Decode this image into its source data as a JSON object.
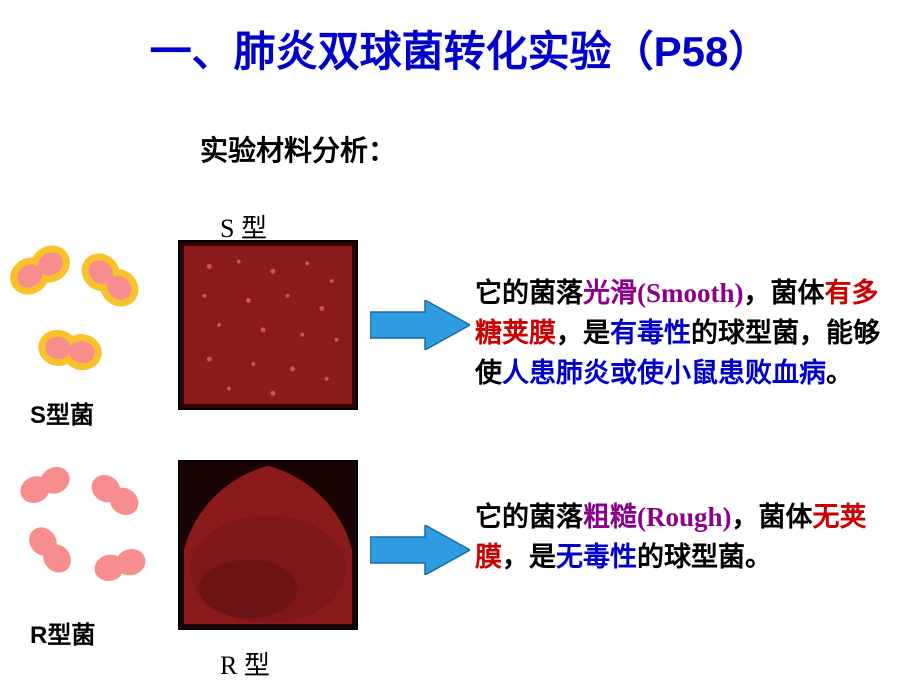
{
  "title": {
    "text": "一、肺炎双球菌转化实验（P58）",
    "color": "#0000cc"
  },
  "subtitle": "实验材料分析：",
  "labels": {
    "s_top": "S 型",
    "r_bottom": "R 型",
    "s_cn": "S型菌",
    "r_cn": "R型菌"
  },
  "bacteria": {
    "s_fill": "#f88d8d",
    "s_border": "#f9c22b",
    "r_fill": "#f88d8d"
  },
  "petri": {
    "bg": "#8b1a1a",
    "dark": "#6b1515"
  },
  "arrow_color": "#2d9de0",
  "arrow_border": "#1a6aa0",
  "text_s": {
    "parts": [
      {
        "t": "它的菌落",
        "c": "#000000"
      },
      {
        "t": "光滑(Smooth)",
        "c": "#8b008b"
      },
      {
        "t": "，菌体",
        "c": "#000000"
      },
      {
        "t": "有多糖荚膜",
        "c": "#cc0000"
      },
      {
        "t": "，是",
        "c": "#000000"
      },
      {
        "t": "有毒性",
        "c": "#0000cc"
      },
      {
        "t": "的球型菌，能够使",
        "c": "#000000"
      },
      {
        "t": "人患肺炎或使小鼠患败血病",
        "c": "#0000cc"
      },
      {
        "t": "。",
        "c": "#000000"
      }
    ]
  },
  "text_r": {
    "parts": [
      {
        "t": "它的菌落",
        "c": "#000000"
      },
      {
        "t": "粗糙(Rough)",
        "c": "#8b008b"
      },
      {
        "t": "，菌体",
        "c": "#000000"
      },
      {
        "t": "无荚膜",
        "c": "#cc0000"
      },
      {
        "t": "，是",
        "c": "#000000"
      },
      {
        "t": "无毒性",
        "c": "#0000cc"
      },
      {
        "t": "的球型菌。",
        "c": "#000000"
      }
    ]
  }
}
